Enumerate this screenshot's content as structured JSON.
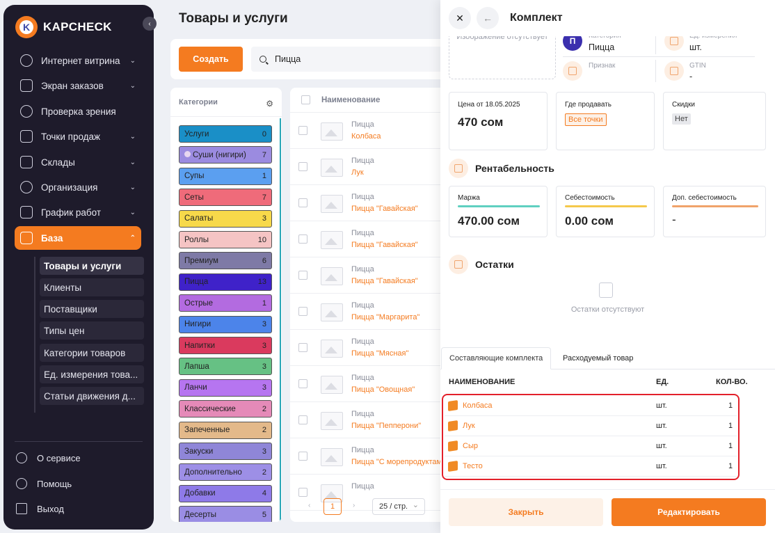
{
  "brand": {
    "name": "KAPCHECK",
    "badge_letter": "K"
  },
  "sidebar": {
    "items": [
      {
        "label": "Интернет витрина",
        "icon": "globe-icon",
        "chevron": "⌄"
      },
      {
        "label": "Экран заказов",
        "icon": "screen-icon",
        "chevron": "⌄"
      },
      {
        "label": "Проверка зрения",
        "icon": "eye-icon",
        "chevron": ""
      },
      {
        "label": "Точки продаж",
        "icon": "store-icon",
        "chevron": "⌄"
      },
      {
        "label": "Склады",
        "icon": "warehouse-icon",
        "chevron": "⌄"
      },
      {
        "label": "Организация",
        "icon": "organization-icon",
        "chevron": "⌄"
      },
      {
        "label": "График работ",
        "icon": "calendar-icon",
        "chevron": "⌄"
      },
      {
        "label": "База",
        "icon": "database-icon",
        "chevron": "⌃"
      }
    ],
    "subitems": [
      "Товары и услуги",
      "Клиенты",
      "Поставщики",
      "Типы цен",
      "Категории товаров",
      "Ед. измерения това...",
      "Статьи движения д..."
    ],
    "footer": [
      {
        "label": "О сервисе",
        "icon": "info-icon"
      },
      {
        "label": "Помощь",
        "icon": "help-icon"
      },
      {
        "label": "Выход",
        "icon": "logout-icon"
      }
    ],
    "collapse_icon": "‹"
  },
  "main": {
    "title": "Товары и услуги",
    "create_label": "Создать",
    "search_value": "Пицца"
  },
  "categories": {
    "header": "Категории",
    "gear": "⚙",
    "items": [
      {
        "name": "Услуги",
        "count": "0",
        "color": "#1a8fc7"
      },
      {
        "name": "Суши (нигири)",
        "count": "7",
        "color": "#9b8be0"
      },
      {
        "name": "Супы",
        "count": "1",
        "color": "#5b9ff0"
      },
      {
        "name": "Сеты",
        "count": "7",
        "color": "#ef6b7a"
      },
      {
        "name": "Салаты",
        "count": "3",
        "color": "#f7d94a"
      },
      {
        "name": "Роллы",
        "count": "10",
        "color": "#f5c4c4"
      },
      {
        "name": "Премиум",
        "count": "6",
        "color": "#7e7aa6"
      },
      {
        "name": "Пицца",
        "count": "13",
        "color": "#3f22c9"
      },
      {
        "name": "Острые",
        "count": "1",
        "color": "#b36be0"
      },
      {
        "name": "Нигири",
        "count": "3",
        "color": "#4c84ea"
      },
      {
        "name": "Напитки",
        "count": "3",
        "color": "#da3a5e"
      },
      {
        "name": "Лапша",
        "count": "3",
        "color": "#66c184"
      },
      {
        "name": "Ланчи",
        "count": "3",
        "color": "#b675f0"
      },
      {
        "name": "Классические",
        "count": "2",
        "color": "#e58ab8"
      },
      {
        "name": "Запеченные",
        "count": "2",
        "color": "#e3b98a"
      },
      {
        "name": "Закуски",
        "count": "3",
        "color": "#8f86d8"
      },
      {
        "name": "Дополнительно",
        "count": "2",
        "color": "#9d8fe6"
      },
      {
        "name": "Добавки",
        "count": "4",
        "color": "#8e7ae8"
      },
      {
        "name": "Десерты",
        "count": "5",
        "color": "#9a8de4"
      }
    ]
  },
  "products": {
    "header": "Наименование",
    "rows": [
      {
        "category": "Пицца",
        "name": "Колбаса"
      },
      {
        "category": "Пицца",
        "name": "Лук"
      },
      {
        "category": "Пицца",
        "name": "Пицца \"Гавайская\""
      },
      {
        "category": "Пицца",
        "name": "Пицца \"Гавайская\""
      },
      {
        "category": "Пицца",
        "name": "Пицца \"Гавайская\""
      },
      {
        "category": "Пицца",
        "name": "Пицца \"Маргарита\""
      },
      {
        "category": "Пицца",
        "name": "Пицца \"Мясная\""
      },
      {
        "category": "Пицца",
        "name": "Пицца \"Овощная\""
      },
      {
        "category": "Пицца",
        "name": "Пицца \"Пепперони\""
      },
      {
        "category": "Пицца",
        "name": "Пицца \"С морепродуктами\""
      },
      {
        "category": "Пицца",
        "name": ""
      }
    ],
    "pager": {
      "prev": "‹",
      "page": "1",
      "next": "›",
      "page_size": "25 / стр."
    }
  },
  "drawer": {
    "title": "Комплект",
    "close_icon": "✕",
    "back_icon": "←",
    "no_image": "Изображение отсутствует",
    "props": {
      "category_label": "Категория",
      "category_value": "Пицца",
      "category_letter": "П",
      "unit_label": "Ед. измерения",
      "unit_value": "шт.",
      "sign_label": "Признак",
      "gtin_label": "GTIN",
      "gtin_value": "-"
    },
    "price": {
      "label": "Цена от 18.05.2025",
      "value": "470 сом",
      "where_label": "Где продавать",
      "where_value": "Все точки",
      "discount_label": "Скидки",
      "discount_value": "Нет"
    },
    "profit": {
      "title": "Рентабельность",
      "margin_label": "Маржа",
      "margin_value": "470.00 сом",
      "margin_color": "#5fd0c0",
      "cost_label": "Себестоимость",
      "cost_value": "0.00 сом",
      "cost_color": "#f5c94b",
      "extra_label": "Доп. себестоимость",
      "extra_value": "-",
      "extra_color": "#f0a36a"
    },
    "stock": {
      "title": "Остатки",
      "empty": "Остатки отсутствуют"
    },
    "tabs": [
      "Составляющие комплекта",
      "Расходуемый товар"
    ],
    "table": {
      "col_name": "НАИМЕНОВАНИЕ",
      "col_unit": "ЕД.",
      "col_qty": "КОЛ-ВО.",
      "rows": [
        {
          "name": "Колбаса",
          "unit": "шт.",
          "qty": "1"
        },
        {
          "name": "Лук",
          "unit": "шт.",
          "qty": "1"
        },
        {
          "name": "Сыр",
          "unit": "шт.",
          "qty": "1"
        },
        {
          "name": "Тесто",
          "unit": "шт.",
          "qty": "1"
        }
      ]
    },
    "close_label": "Закрыть",
    "edit_label": "Редактировать"
  }
}
